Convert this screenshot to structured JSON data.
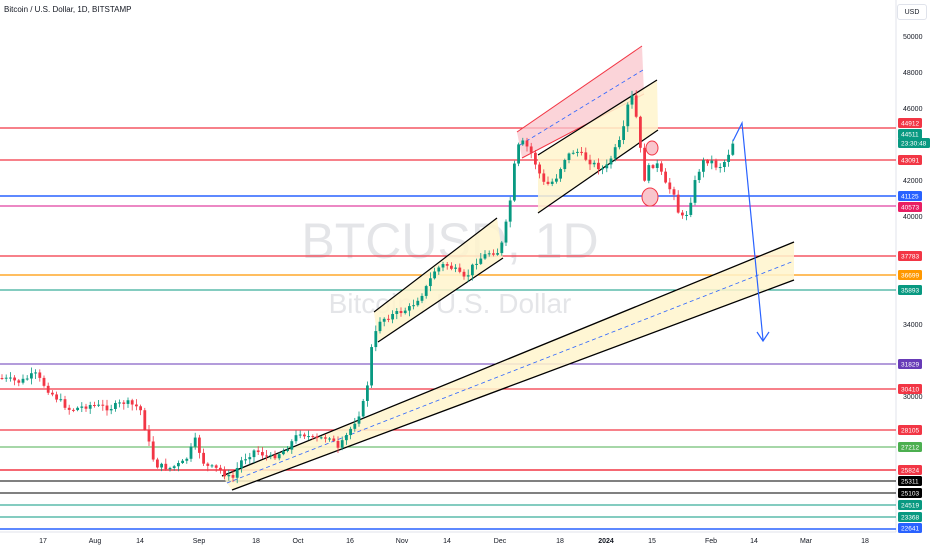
{
  "header": {
    "symbol_title": "Bitcoin / U.S. Dollar, 1D, BITSTAMP",
    "currency_label": "USD"
  },
  "watermark": {
    "ticker": "BTCUSD, 1D",
    "name": "Bitcoin / U.S. Dollar"
  },
  "price_axis": {
    "ticks": [
      "50000",
      "48000",
      "46000",
      "44000",
      "42000",
      "40000",
      "34000",
      "30000"
    ]
  },
  "time_axis": {
    "labels": [
      "17",
      "Aug",
      "14",
      "Sep",
      "18",
      "Oct",
      "16",
      "Nov",
      "14",
      "Dec",
      "18",
      "2024",
      "15",
      "Feb",
      "14",
      "Mar",
      "18"
    ]
  },
  "price_badges": [
    {
      "text": "44912",
      "color": "#f23645"
    },
    {
      "text": "44511",
      "color": "#089981"
    },
    {
      "text": "23:30:48",
      "color": "#089981"
    },
    {
      "text": "43091",
      "color": "#f23645"
    },
    {
      "text": "41125",
      "color": "#2962ff"
    },
    {
      "text": "40573",
      "color": "#e91e63"
    },
    {
      "text": "37783",
      "color": "#f23645"
    },
    {
      "text": "36699",
      "color": "#ff9800"
    },
    {
      "text": "35893",
      "color": "#089981"
    },
    {
      "text": "31829",
      "color": "#673ab7"
    },
    {
      "text": "30410",
      "color": "#f23645"
    },
    {
      "text": "28105",
      "color": "#f23645"
    },
    {
      "text": "27212",
      "color": "#4caf50"
    },
    {
      "text": "25824",
      "color": "#f23645"
    },
    {
      "text": "25311",
      "color": "#000000"
    },
    {
      "text": "25103",
      "color": "#000000"
    },
    {
      "text": "24519",
      "color": "#089981"
    },
    {
      "text": "23368",
      "color": "#089981"
    },
    {
      "text": "22641",
      "color": "#2962ff"
    }
  ],
  "colors": {
    "up": "#089981",
    "down": "#f23645",
    "channel_fill": "#fff5cc",
    "rising_wedge_fill": "#f9c5cc",
    "projection_arrow": "#2962ff"
  }
}
